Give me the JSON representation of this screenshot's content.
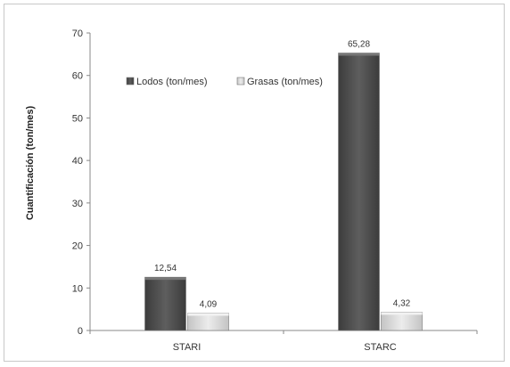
{
  "chart_data": {
    "type": "bar",
    "categories": [
      "STARI",
      "STARC"
    ],
    "series": [
      {
        "name": "Lodos (ton/mes)",
        "values": [
          12.54,
          65.28
        ],
        "labels": [
          "12,54",
          "65,28"
        ],
        "color": "#505050"
      },
      {
        "name": "Grasas (ton/mes)",
        "values": [
          4.09,
          4.32
        ],
        "labels": [
          "4,09",
          "4,32"
        ],
        "color": "#d8d8d8"
      }
    ],
    "ylabel": "Cuantificación (ton/mes)",
    "xlabel": "",
    "ylim": [
      0,
      70
    ],
    "yticks": [
      0,
      10,
      20,
      30,
      40,
      50,
      60,
      70
    ],
    "grid": false,
    "legend": "top-left"
  }
}
